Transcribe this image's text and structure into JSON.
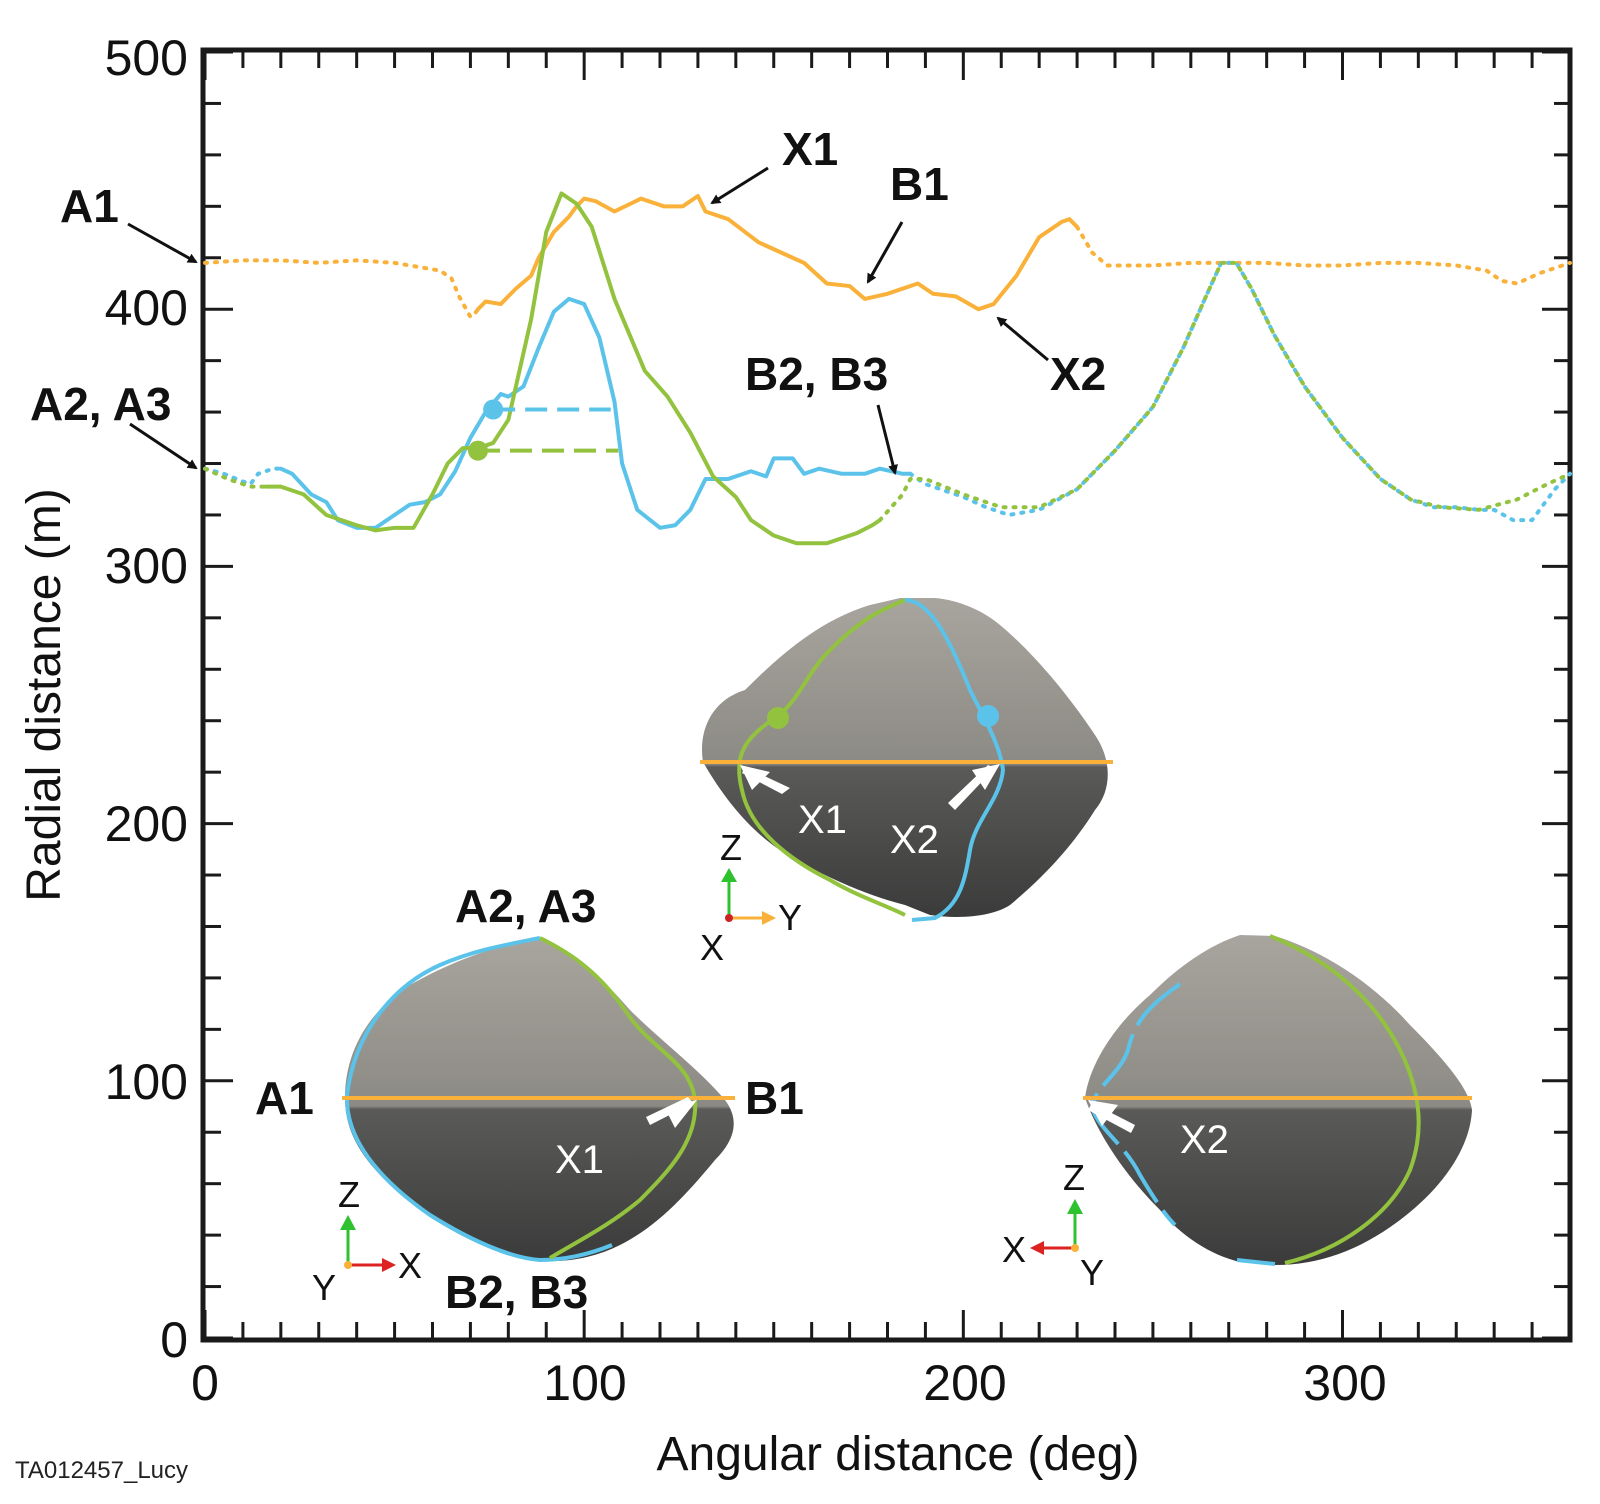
{
  "chart_data": {
    "type": "line",
    "xlabel": "Angular distance (deg)",
    "ylabel": "Radial distance (m)",
    "xlim": [
      0,
      360
    ],
    "ylim": [
      0,
      500
    ],
    "x_ticks": [
      0,
      100,
      200,
      300
    ],
    "y_ticks": [
      0,
      100,
      200,
      300,
      400,
      500
    ],
    "colors": {
      "orange": "#F9B13A",
      "blue": "#5BC3EA",
      "green": "#93C23F"
    },
    "series": [
      {
        "name": "orange",
        "color": "#F9B13A",
        "dotted": [
          [
            0,
            418
          ],
          [
            10,
            419
          ],
          [
            20,
            419
          ],
          [
            30,
            418
          ],
          [
            40,
            419
          ],
          [
            50,
            418
          ],
          [
            58,
            416
          ],
          [
            62,
            415
          ],
          [
            65,
            412
          ],
          [
            67,
            405
          ],
          [
            70,
            397
          ],
          [
            71,
            398
          ],
          [
            72,
            400
          ]
        ],
        "solid": [
          [
            72,
            400
          ],
          [
            74,
            403
          ],
          [
            78,
            402
          ],
          [
            82,
            408
          ],
          [
            86,
            413
          ],
          [
            88,
            420
          ],
          [
            92,
            430
          ],
          [
            96,
            436
          ],
          [
            98,
            440
          ],
          [
            100,
            443
          ],
          [
            103,
            442
          ],
          [
            108,
            438
          ],
          [
            115,
            443
          ],
          [
            121,
            440
          ],
          [
            126,
            440
          ],
          [
            130,
            444
          ],
          [
            132,
            438
          ],
          [
            138,
            435
          ],
          [
            146,
            426
          ],
          [
            152,
            422
          ],
          [
            158,
            418
          ],
          [
            164,
            410
          ],
          [
            170,
            409
          ],
          [
            174,
            404
          ],
          [
            180,
            406
          ],
          [
            188,
            410
          ],
          [
            192,
            406
          ],
          [
            198,
            405
          ],
          [
            204,
            400
          ],
          [
            208,
            402
          ],
          [
            214,
            413
          ],
          [
            220,
            428
          ],
          [
            226,
            434
          ],
          [
            228,
            435
          ],
          [
            230,
            432
          ]
        ],
        "dotted2": [
          [
            230,
            432
          ],
          [
            234,
            422
          ],
          [
            238,
            417
          ],
          [
            250,
            417
          ],
          [
            260,
            418
          ],
          [
            270,
            418
          ],
          [
            280,
            418
          ],
          [
            290,
            417
          ],
          [
            300,
            417
          ],
          [
            310,
            418
          ],
          [
            320,
            418
          ],
          [
            330,
            417
          ],
          [
            338,
            415
          ],
          [
            342,
            411
          ],
          [
            346,
            410
          ],
          [
            352,
            414
          ],
          [
            360,
            418
          ]
        ]
      },
      {
        "name": "blue",
        "color": "#5BC3EA",
        "dotted": [
          [
            0,
            338
          ],
          [
            5,
            336
          ],
          [
            10,
            333
          ],
          [
            12,
            332
          ],
          [
            14,
            336
          ],
          [
            18,
            338
          ],
          [
            20,
            338
          ]
        ],
        "solid": [
          [
            20,
            338
          ],
          [
            23,
            336
          ],
          [
            28,
            328
          ],
          [
            32,
            325
          ],
          [
            35,
            318
          ],
          [
            40,
            315
          ],
          [
            45,
            315
          ],
          [
            49,
            319
          ],
          [
            54,
            324
          ],
          [
            58,
            325
          ],
          [
            62,
            328
          ],
          [
            66,
            337
          ],
          [
            70,
            350
          ],
          [
            74,
            360
          ],
          [
            78,
            367
          ],
          [
            80,
            366
          ],
          [
            84,
            370
          ],
          [
            88,
            385
          ],
          [
            92,
            399
          ],
          [
            96,
            404
          ],
          [
            100,
            402
          ],
          [
            104,
            389
          ],
          [
            108,
            364
          ],
          [
            110,
            340
          ],
          [
            114,
            322
          ],
          [
            120,
            315
          ],
          [
            124,
            316
          ],
          [
            128,
            322
          ],
          [
            132,
            334
          ],
          [
            138,
            334
          ],
          [
            144,
            337
          ],
          [
            148,
            335
          ],
          [
            150,
            342
          ],
          [
            155,
            342
          ],
          [
            158,
            336
          ],
          [
            162,
            338
          ],
          [
            168,
            336
          ],
          [
            174,
            336
          ],
          [
            178,
            338
          ],
          [
            184,
            336
          ],
          [
            186,
            336
          ]
        ],
        "dotted2": [
          [
            186,
            336
          ],
          [
            190,
            332
          ],
          [
            196,
            329
          ],
          [
            200,
            327
          ],
          [
            206,
            323
          ],
          [
            212,
            320
          ],
          [
            220,
            322
          ],
          [
            230,
            330
          ],
          [
            240,
            345
          ],
          [
            250,
            362
          ],
          [
            258,
            385
          ],
          [
            264,
            405
          ],
          [
            268,
            418
          ],
          [
            272,
            418
          ],
          [
            276,
            408
          ],
          [
            282,
            390
          ],
          [
            290,
            370
          ],
          [
            300,
            350
          ],
          [
            310,
            334
          ],
          [
            318,
            326
          ],
          [
            324,
            323
          ],
          [
            330,
            323
          ],
          [
            336,
            322
          ],
          [
            340,
            322
          ],
          [
            345,
            318
          ],
          [
            350,
            318
          ],
          [
            356,
            330
          ],
          [
            360,
            336
          ]
        ]
      },
      {
        "name": "green",
        "color": "#93C23F",
        "dotted": [
          [
            0,
            338
          ],
          [
            6,
            334
          ],
          [
            12,
            331
          ],
          [
            16,
            331
          ]
        ],
        "solid": [
          [
            16,
            331
          ],
          [
            20,
            331
          ],
          [
            26,
            328
          ],
          [
            32,
            320
          ],
          [
            40,
            316
          ],
          [
            45,
            314
          ],
          [
            50,
            315
          ],
          [
            55,
            315
          ],
          [
            60,
            328
          ],
          [
            64,
            340
          ],
          [
            68,
            346
          ],
          [
            72,
            346
          ],
          [
            76,
            348
          ],
          [
            80,
            357
          ],
          [
            86,
            396
          ],
          [
            90,
            430
          ],
          [
            94,
            445
          ],
          [
            98,
            441
          ],
          [
            102,
            432
          ],
          [
            108,
            404
          ],
          [
            116,
            376
          ],
          [
            122,
            366
          ],
          [
            128,
            352
          ],
          [
            134,
            335
          ],
          [
            140,
            327
          ],
          [
            144,
            318
          ],
          [
            150,
            312
          ],
          [
            156,
            309
          ],
          [
            164,
            309
          ],
          [
            172,
            313
          ],
          [
            176,
            316
          ],
          [
            178,
            318
          ]
        ],
        "dotted2": [
          [
            178,
            318
          ],
          [
            184,
            328
          ],
          [
            186,
            334
          ],
          [
            190,
            334
          ],
          [
            200,
            328
          ],
          [
            210,
            323
          ],
          [
            220,
            323
          ],
          [
            230,
            330
          ],
          [
            240,
            345
          ],
          [
            250,
            362
          ],
          [
            258,
            385
          ],
          [
            264,
            405
          ],
          [
            268,
            418
          ],
          [
            272,
            418
          ],
          [
            276,
            408
          ],
          [
            282,
            390
          ],
          [
            290,
            370
          ],
          [
            300,
            350
          ],
          [
            310,
            334
          ],
          [
            318,
            326
          ],
          [
            326,
            323
          ],
          [
            336,
            322
          ],
          [
            346,
            326
          ],
          [
            354,
            332
          ],
          [
            360,
            336
          ]
        ]
      }
    ],
    "dashed_refs": [
      {
        "series": "blue",
        "x": [
          76,
          107
        ],
        "y": 361,
        "marker_x": 76
      },
      {
        "series": "green",
        "x": [
          72,
          109
        ],
        "y": 345,
        "marker_x": 72
      }
    ],
    "annotations": {
      "a1": "A1",
      "x1": "X1",
      "b1": "B1",
      "x2": "X2",
      "a2a3": "A2, A3",
      "b2b3": "B2, B3"
    }
  },
  "views": {
    "top": {
      "x1": "X1",
      "x2": "X2",
      "axes": {
        "up": "Z",
        "right": "Y",
        "out": "X"
      }
    },
    "left": {
      "a1": "A1",
      "b1": "B1",
      "x1": "X1",
      "a2a3": "A2, A3",
      "b2b3": "B2, B3",
      "axes": {
        "up": "Z",
        "right": "X",
        "out": "Y"
      }
    },
    "right": {
      "x2": "X2",
      "axes": {
        "up": "Z",
        "left": "X",
        "out": "Y"
      }
    }
  },
  "credit": "TA012457_Lucy"
}
